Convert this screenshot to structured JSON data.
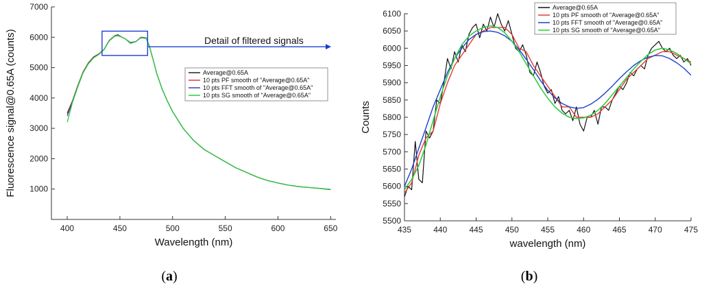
{
  "chart_data": [
    {
      "type": "line",
      "panel_label": "a",
      "xlabel": "Wavelength (nm)",
      "ylabel": "Fluorescence signal@0.65A (counts)",
      "xlim": [
        385,
        655
      ],
      "ylim": [
        0,
        7000
      ],
      "xticks": [
        400,
        450,
        500,
        550,
        600,
        650
      ],
      "yticks": [
        1000,
        2000,
        3000,
        4000,
        5000,
        6000,
        7000
      ],
      "legend_position": "center-right",
      "annotation": "Detail of filtered signals",
      "highlight_range": {
        "x": [
          435,
          475
        ],
        "y": [
          5400,
          6200
        ]
      },
      "x": [
        400,
        405,
        410,
        415,
        420,
        425,
        430,
        435,
        440,
        445,
        448,
        452,
        455,
        460,
        465,
        470,
        475,
        478,
        482,
        485,
        490,
        495,
        500,
        510,
        520,
        530,
        540,
        550,
        560,
        570,
        580,
        590,
        600,
        610,
        620,
        630,
        640,
        650
      ],
      "series": [
        {
          "name": "Average@0.65A",
          "color": "#222222",
          "values": [
            3500,
            3900,
            4400,
            4850,
            5150,
            5350,
            5450,
            5600,
            5900,
            6050,
            6080,
            6000,
            5950,
            5800,
            5850,
            6000,
            5980,
            5700,
            5200,
            4800,
            4300,
            3900,
            3550,
            3000,
            2600,
            2300,
            2100,
            1900,
            1700,
            1550,
            1400,
            1280,
            1200,
            1130,
            1080,
            1050,
            1020,
            980
          ]
        },
        {
          "name": "10 pts PF smooth of \"Average@0.65A\"",
          "color": "#e53935",
          "values": [
            3450,
            3880,
            4380,
            4840,
            5140,
            5340,
            5450,
            5600,
            5900,
            6040,
            6060,
            6000,
            5950,
            5810,
            5850,
            5990,
            5970,
            5700,
            5200,
            4800,
            4300,
            3900,
            3550,
            3000,
            2600,
            2300,
            2100,
            1900,
            1700,
            1550,
            1400,
            1280,
            1200,
            1130,
            1080,
            1050,
            1020,
            990
          ]
        },
        {
          "name": "10 pts FFT smooth of \"Average@0.65A\"",
          "color": "#3949ab",
          "values": [
            3400,
            3860,
            4370,
            4830,
            5130,
            5330,
            5440,
            5600,
            5880,
            6030,
            6050,
            6000,
            5950,
            5830,
            5860,
            5980,
            5960,
            5700,
            5200,
            4800,
            4300,
            3900,
            3550,
            3000,
            2600,
            2300,
            2100,
            1900,
            1700,
            1550,
            1400,
            1280,
            1200,
            1130,
            1080,
            1050,
            1020,
            990
          ]
        },
        {
          "name": "10 pts SG smooth of \"Average@0.65A\"",
          "color": "#2ecc40",
          "values": [
            3200,
            3850,
            4360,
            4820,
            5120,
            5320,
            5430,
            5590,
            5890,
            6040,
            6060,
            6000,
            5950,
            5810,
            5850,
            5990,
            5970,
            5700,
            5200,
            4800,
            4300,
            3900,
            3550,
            3000,
            2600,
            2300,
            2100,
            1900,
            1700,
            1550,
            1400,
            1280,
            1200,
            1130,
            1080,
            1050,
            1020,
            990
          ]
        }
      ]
    },
    {
      "type": "line",
      "panel_label": "b",
      "xlabel": "wavelength (nm)",
      "ylabel": "Counts",
      "xlim": [
        435,
        475
      ],
      "ylim": [
        5500,
        6100
      ],
      "xticks": [
        435,
        440,
        445,
        450,
        455,
        460,
        465,
        470,
        475
      ],
      "yticks": [
        5500,
        5550,
        5600,
        5650,
        5700,
        5750,
        5800,
        5850,
        5900,
        5950,
        6000,
        6050,
        6100
      ],
      "legend_position": "top-right",
      "series": [
        {
          "name": "Average@0.65A",
          "color": "#111111",
          "x": [
            435,
            435.5,
            436,
            436.5,
            437,
            437.5,
            438,
            438.5,
            439,
            439.5,
            440,
            440.5,
            441,
            441.5,
            442,
            442.5,
            443,
            443.5,
            444,
            444.5,
            445,
            445.5,
            446,
            446.5,
            447,
            447.5,
            448,
            448.5,
            449,
            449.5,
            450,
            450.5,
            451,
            451.5,
            452,
            452.5,
            453,
            453.5,
            454,
            454.5,
            455,
            455.5,
            456,
            456.5,
            457,
            457.5,
            458,
            458.5,
            459,
            459.5,
            460,
            460.5,
            461,
            461.5,
            462,
            462.5,
            463,
            463.5,
            464,
            464.5,
            465,
            465.5,
            466,
            466.5,
            467,
            467.5,
            468,
            468.5,
            469,
            469.5,
            470,
            470.5,
            471,
            471.5,
            472,
            472.5,
            473,
            473.5,
            474,
            474.5,
            475
          ],
          "values": [
            5570,
            5600,
            5590,
            5730,
            5620,
            5610,
            5760,
            5740,
            5760,
            5850,
            5840,
            5900,
            5970,
            5940,
            5990,
            5960,
            6010,
            5990,
            6040,
            6060,
            6070,
            6030,
            6070,
            6050,
            6090,
            6060,
            6100,
            6070,
            6050,
            6080,
            6040,
            6000,
            5990,
            6010,
            5980,
            5930,
            5920,
            5960,
            5930,
            5890,
            5870,
            5880,
            5840,
            5860,
            5820,
            5810,
            5820,
            5790,
            5830,
            5780,
            5760,
            5800,
            5800,
            5820,
            5780,
            5830,
            5830,
            5820,
            5850,
            5870,
            5890,
            5880,
            5900,
            5930,
            5920,
            5940,
            5950,
            5940,
            5980,
            6000,
            6010,
            6020,
            6000,
            5990,
            6000,
            5980,
            5970,
            5980,
            5960,
            5970,
            5950
          ]
        },
        {
          "name": "10 pts PF smooth of \"Average@0.65A\"",
          "color": "#e53935",
          "x": [
            435,
            436,
            437,
            438,
            439,
            440,
            441,
            442,
            443,
            444,
            445,
            446,
            447,
            448,
            449,
            450,
            451,
            452,
            453,
            454,
            455,
            456,
            457,
            458,
            459,
            460,
            461,
            462,
            463,
            464,
            465,
            466,
            467,
            468,
            469,
            470,
            471,
            472,
            473,
            474,
            475
          ],
          "values": [
            5580,
            5610,
            5690,
            5740,
            5760,
            5840,
            5900,
            5950,
            5980,
            6010,
            6040,
            6050,
            6060,
            6060,
            6060,
            6040,
            6000,
            5990,
            5950,
            5920,
            5890,
            5860,
            5830,
            5830,
            5800,
            5800,
            5800,
            5810,
            5830,
            5850,
            5880,
            5910,
            5930,
            5950,
            5970,
            5980,
            5990,
            5990,
            5980,
            5970,
            5960
          ]
        },
        {
          "name": "10 pts FFT smooth of \"Average@0.65A\"",
          "color": "#1a3fd0",
          "x": [
            435,
            436,
            437,
            438,
            439,
            440,
            441,
            442,
            443,
            444,
            445,
            446,
            447,
            448,
            449,
            450,
            451,
            452,
            453,
            454,
            455,
            456,
            457,
            458,
            459,
            460,
            461,
            462,
            463,
            464,
            465,
            466,
            467,
            468,
            469,
            470,
            471,
            472,
            473,
            474,
            475
          ],
          "values": [
            5600,
            5650,
            5710,
            5770,
            5830,
            5880,
            5930,
            5970,
            6000,
            6025,
            6040,
            6048,
            6050,
            6046,
            6036,
            6020,
            5996,
            5968,
            5938,
            5906,
            5878,
            5856,
            5840,
            5830,
            5826,
            5828,
            5838,
            5852,
            5870,
            5890,
            5912,
            5932,
            5950,
            5964,
            5974,
            5979,
            5978,
            5970,
            5958,
            5942,
            5922
          ]
        },
        {
          "name": "10 pts SG smooth of \"Average@0.65A\"",
          "color": "#2ecc40",
          "x": [
            435,
            436,
            437,
            438,
            439,
            440,
            441,
            442,
            443,
            444,
            445,
            446,
            447,
            448,
            449,
            450,
            451,
            452,
            453,
            454,
            455,
            456,
            457,
            458,
            459,
            460,
            461,
            462,
            463,
            464,
            465,
            466,
            467,
            468,
            469,
            470,
            471,
            472,
            473,
            474,
            475
          ],
          "values": [
            5590,
            5620,
            5660,
            5720,
            5790,
            5860,
            5920,
            5970,
            6010,
            6035,
            6050,
            6060,
            6065,
            6060,
            6045,
            6020,
            5990,
            5955,
            5920,
            5885,
            5855,
            5830,
            5812,
            5800,
            5796,
            5798,
            5806,
            5820,
            5840,
            5865,
            5890,
            5915,
            5940,
            5962,
            5982,
            5995,
            6000,
            5995,
            5985,
            5970,
            5955
          ]
        }
      ]
    }
  ]
}
